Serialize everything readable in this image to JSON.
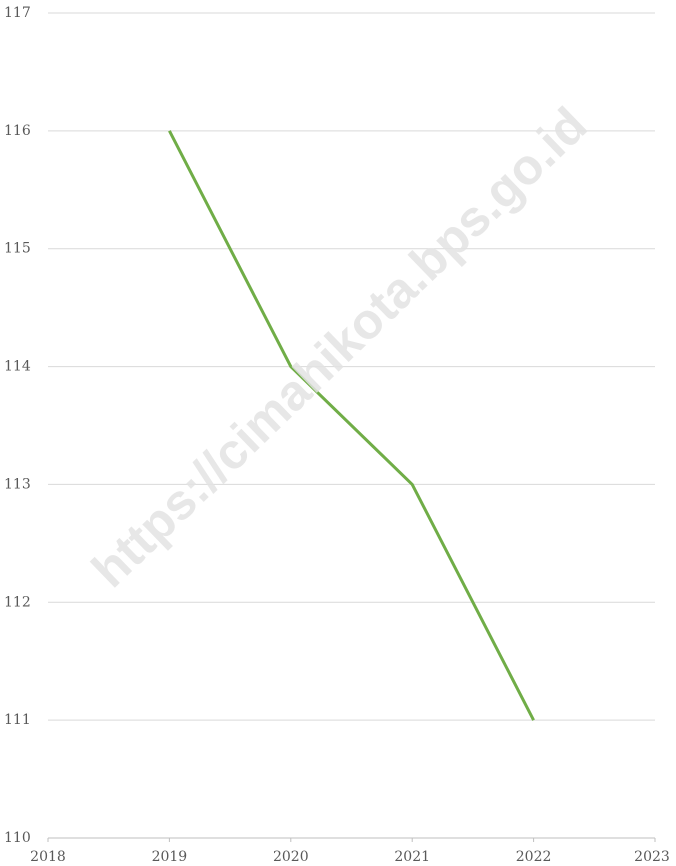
{
  "chart_data": {
    "type": "line",
    "x": [
      2019,
      2020,
      2021,
      2022
    ],
    "series": [
      {
        "name": null,
        "color": "#70ad47",
        "values": [
          116,
          114,
          113,
          111
        ]
      }
    ],
    "xlim": [
      2018,
      2023
    ],
    "xticks": [
      2018,
      2019,
      2020,
      2021,
      2022,
      2023
    ],
    "ylim": [
      110,
      117
    ],
    "yticks": [
      110,
      111,
      112,
      113,
      114,
      115,
      116,
      117
    ],
    "grid": true,
    "watermark": "https://cimahikota.bps.go.id"
  }
}
